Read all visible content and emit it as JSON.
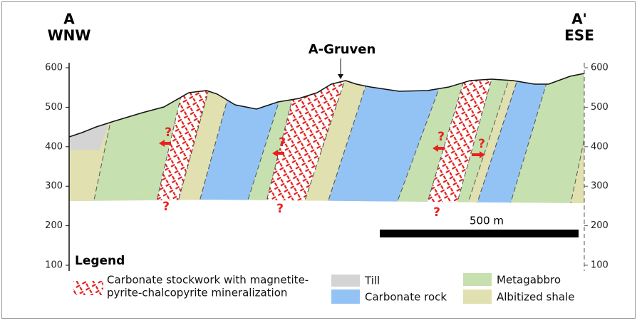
{
  "header": {
    "left_label": "A",
    "left_direction": "WNW",
    "right_label": "A'",
    "right_direction": "ESE",
    "location": "A-Gruven"
  },
  "elevation_ticks": [
    100,
    200,
    300,
    400,
    500,
    600
  ],
  "question_marks": [
    "?",
    "?",
    "?",
    "?",
    "?",
    "?",
    "?"
  ],
  "scale_bar": "500 m",
  "legend": {
    "title": "Legend",
    "stockwork": [
      "Carbonate stockwork with magnetite-",
      "pyrite-chalcopyrite mineralization"
    ],
    "till": "Till",
    "carbonate": "Carbonate rock",
    "metagabbro": "Metagabbro",
    "shale": "Albitized shale"
  }
}
